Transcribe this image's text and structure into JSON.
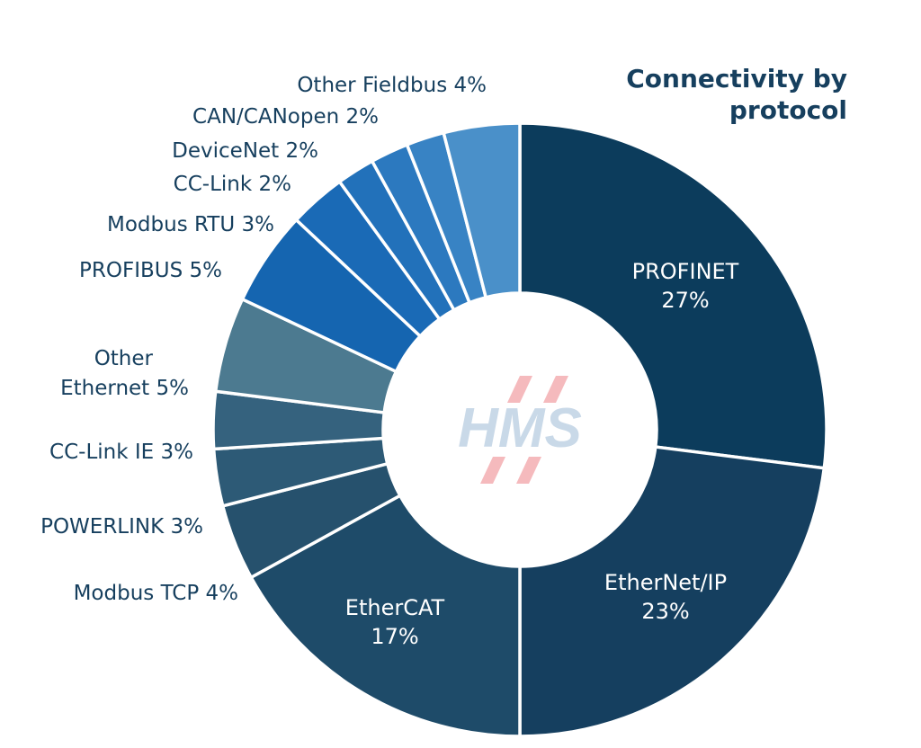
{
  "chart_data": {
    "type": "pie",
    "variant": "donut",
    "title": "Connectivity by protocol",
    "slices": [
      {
        "label": "PROFINET",
        "value": 27,
        "color": "#0c3c5c"
      },
      {
        "label": "EtherNet/IP",
        "value": 23,
        "color": "#153f5f"
      },
      {
        "label": "EtherCAT",
        "value": 17,
        "color": "#1e4b69"
      },
      {
        "label": "Modbus TCP",
        "value": 4,
        "color": "#26516d"
      },
      {
        "label": "POWERLINK",
        "value": 3,
        "color": "#2d5a76"
      },
      {
        "label": "CC-Link IE",
        "value": 3,
        "color": "#35627e"
      },
      {
        "label": "Other Ethernet",
        "value": 5,
        "color": "#4c7a90"
      },
      {
        "label": "PROFIBUS",
        "value": 5,
        "color": "#1565b0"
      },
      {
        "label": "Modbus RTU",
        "value": 3,
        "color": "#1a6ab6"
      },
      {
        "label": "CC-Link",
        "value": 2,
        "color": "#2271ba"
      },
      {
        "label": "DeviceNet",
        "value": 2,
        "color": "#2c79bf"
      },
      {
        "label": "CAN/CANopen",
        "value": 2,
        "color": "#3883c4"
      },
      {
        "label": "Other Fieldbus",
        "value": 4,
        "color": "#4a90c9"
      }
    ],
    "value_suffix": "%",
    "center_logo_text": "HMS",
    "legend": "none"
  },
  "label_color": "#163f5e",
  "inner_label_color": "#ffffff"
}
